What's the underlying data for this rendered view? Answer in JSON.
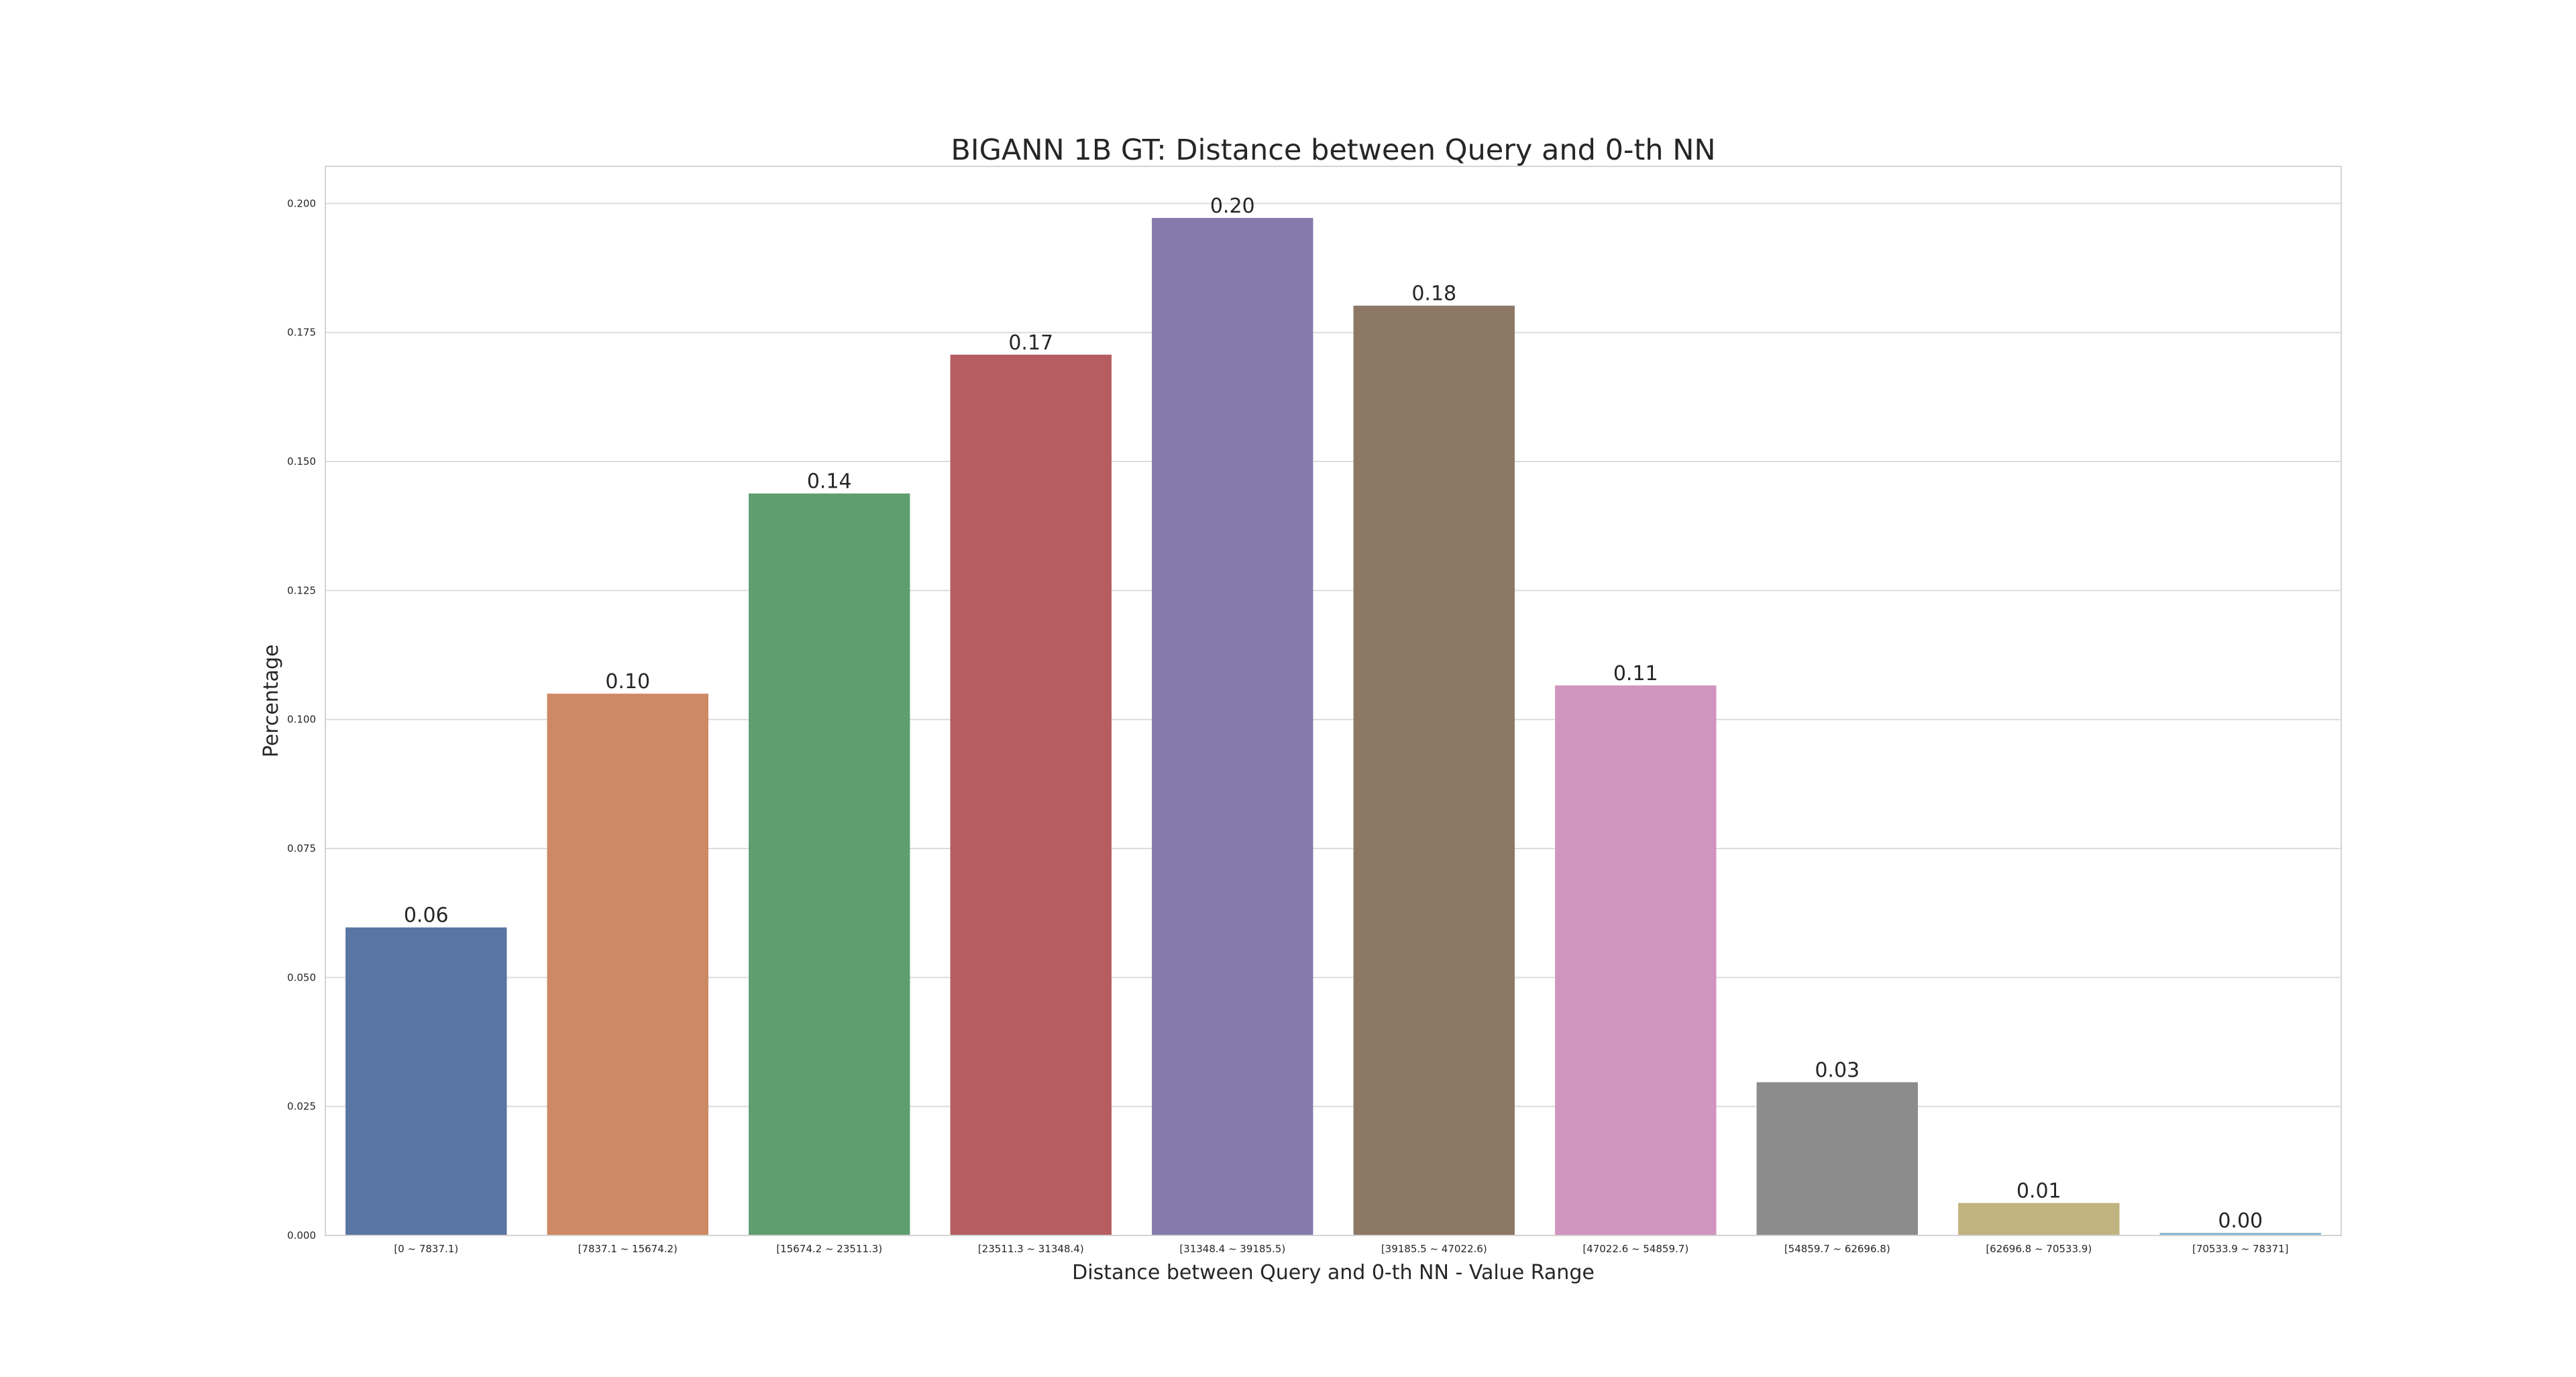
{
  "chart_data": {
    "type": "bar",
    "title": "BIGANN 1B GT: Distance between Query and 0-th NN",
    "xlabel": "Distance between Query and 0-th NN - Value Range",
    "ylabel": "Percentage",
    "categories": [
      "[0 ~ 7837.1)",
      "[7837.1 ~ 15674.2)",
      "[15674.2 ~ 23511.3)",
      "[23511.3 ~ 31348.4)",
      "[31348.4 ~ 39185.5)",
      "[39185.5 ~ 47022.6)",
      "[47022.6 ~ 54859.7)",
      "[54859.7 ~ 62696.8)",
      "[62696.8 ~ 70533.9)",
      "[70533.9 ~ 78371]"
    ],
    "values": [
      0.0597,
      0.105,
      0.1438,
      0.1707,
      0.1972,
      0.1802,
      0.1066,
      0.0297,
      0.0063,
      0.0005
    ],
    "value_labels": [
      "0.06",
      "0.10",
      "0.14",
      "0.17",
      "0.20",
      "0.18",
      "0.11",
      "0.03",
      "0.01",
      "0.00"
    ],
    "ylim": [
      0,
      0.2072
    ],
    "yticks": [
      0.0,
      0.025,
      0.05,
      0.075,
      0.1,
      0.125,
      0.15,
      0.175,
      0.2
    ],
    "ytick_labels": [
      "0.000",
      "0.025",
      "0.050",
      "0.075",
      "0.100",
      "0.125",
      "0.150",
      "0.175",
      "0.200"
    ],
    "grid": true,
    "legend": false,
    "colors": [
      "#5975a4",
      "#cc8963",
      "#5f9e6e",
      "#b55d60",
      "#857aab",
      "#8d7866",
      "#d095bf",
      "#8c8c8c",
      "#c1b37f",
      "#85b6d4"
    ]
  }
}
